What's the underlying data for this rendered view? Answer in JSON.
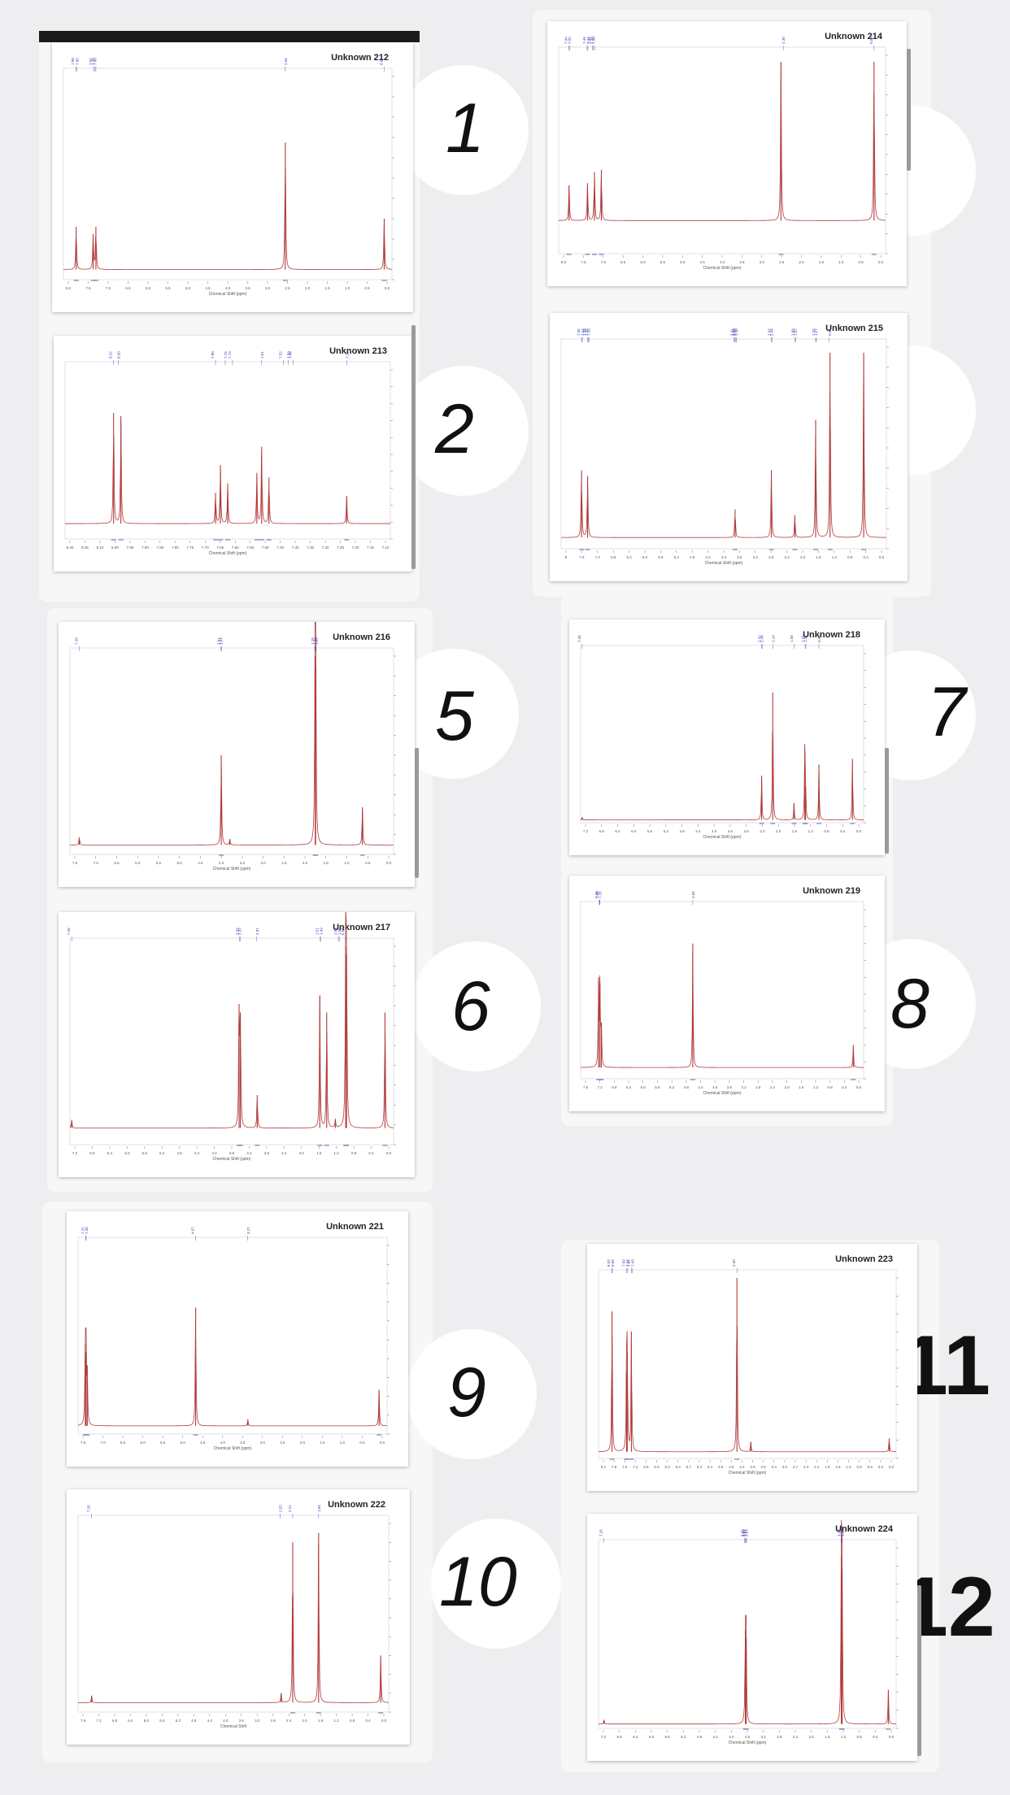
{
  "colors": {
    "spectrum": "#b13a3a",
    "peak_label": "#3a44b0",
    "axis": "#777777",
    "background": "#eeeef0"
  },
  "numbers": [
    "1",
    "2",
    "5",
    "6",
    "7",
    "8",
    "9",
    "10",
    "11",
    "12"
  ],
  "chart_data": [
    {
      "type": "line",
      "title": "Unknown 212",
      "xlabel": "Chemical Shift (ppm)",
      "xlim": [
        8.3,
        -0.2
      ],
      "ylim": [
        -0.1,
        1.9
      ],
      "x_ticks": [
        "8.0",
        "7.5",
        "7.0",
        "6.5",
        "6.0",
        "5.5",
        "5.0",
        "4.5",
        "4.0",
        "3.5",
        "3.0",
        "2.5",
        "2.0",
        "1.5",
        "1.0",
        "0.5",
        "0.0"
      ],
      "peak_labels": [
        "7.98",
        "7.95",
        "7.52",
        "7.49",
        "7.46",
        "2.56",
        "0.00"
      ],
      "series": [
        {
          "peaks": [
            {
              "x": 7.97,
              "y": 0.42
            },
            {
              "x": 7.53,
              "y": 0.35
            },
            {
              "x": 7.46,
              "y": 0.42
            },
            {
              "x": 2.56,
              "y": 1.25
            },
            {
              "x": 0.0,
              "y": 0.5
            }
          ]
        }
      ]
    },
    {
      "type": "line",
      "title": "Unknown 213",
      "xlabel": "Chemical Shift (ppm)",
      "xlim": [
        8.42,
        7.08
      ],
      "ylim": [
        -0.1,
        1.0
      ],
      "x_ticks": [
        "8.40",
        "8.25",
        "8.10",
        "8.00",
        "7.95",
        "7.90",
        "7.85",
        "7.80",
        "7.75",
        "7.70",
        "7.65",
        "7.60",
        "7.55",
        "7.50",
        "7.45",
        "7.40",
        "7.35",
        "7.30",
        "7.25",
        "7.20",
        "7.15",
        "7.10"
      ],
      "peak_labels": [
        "8.22",
        "8.20",
        "7.80",
        "7.76",
        "7.73",
        "7.61",
        "7.52",
        "7.50",
        "7.48",
        "7.26"
      ],
      "series": [
        {
          "peaks": [
            {
              "x": 8.22,
              "y": 0.72
            },
            {
              "x": 8.19,
              "y": 0.7
            },
            {
              "x": 7.8,
              "y": 0.2
            },
            {
              "x": 7.78,
              "y": 0.38
            },
            {
              "x": 7.75,
              "y": 0.26
            },
            {
              "x": 7.63,
              "y": 0.33
            },
            {
              "x": 7.61,
              "y": 0.5
            },
            {
              "x": 7.58,
              "y": 0.3
            },
            {
              "x": 7.26,
              "y": 0.18
            }
          ]
        }
      ]
    },
    {
      "type": "line",
      "title": "Unknown 214",
      "xlabel": "Chemical Shift (ppm)",
      "xlim": [
        8.2,
        -0.3
      ],
      "ylim": [
        -0.15,
        0.75
      ],
      "x_ticks": [
        "8.0",
        "7.5",
        "7.0",
        "6.5",
        "6.0",
        "5.5",
        "5.0",
        "4.5",
        "4.0",
        "3.5",
        "3.0",
        "2.5",
        "2.0",
        "1.5",
        "1.0",
        "0.5",
        "0.0"
      ],
      "peak_labels": [
        "7.94",
        "7.92",
        "7.46",
        "7.44",
        "7.32",
        "7.30",
        "7.26",
        "2.36",
        "0.00"
      ],
      "series": [
        {
          "peaks": [
            {
              "x": 7.93,
              "y": 0.16
            },
            {
              "x": 7.45,
              "y": 0.17
            },
            {
              "x": 7.27,
              "y": 0.22
            },
            {
              "x": 7.09,
              "y": 0.23
            },
            {
              "x": 2.42,
              "y": 0.72
            },
            {
              "x": 0.0,
              "y": 0.72
            }
          ]
        }
      ]
    },
    {
      "type": "line",
      "title": "Unknown 215",
      "xlabel": "Chemical Shift (ppm)",
      "xlim": [
        8.0,
        -0.6
      ],
      "ylim": [
        -0.02,
        0.34
      ],
      "x_ticks": [
        "8",
        "7.6",
        "7.2",
        "6.8",
        "6.4",
        "6.0",
        "5.6",
        "5.2",
        "4.8",
        "4.4",
        "4.0",
        "3.6",
        "3.2",
        "2.8",
        "2.4",
        "2.0",
        "1.6",
        "1.2",
        "0.8",
        "0.4",
        "0.0"
      ],
      "peak_labels": [
        "7.46",
        "7.44",
        "7.30",
        "7.28",
        "7.26",
        "3.43",
        "3.41",
        "3.38",
        "3.36",
        "2.44",
        "2.42",
        "1.82",
        "1.80",
        "1.27",
        "1.25",
        "0.91"
      ],
      "series": [
        {
          "peaks": [
            {
              "x": 7.46,
              "y": 0.12
            },
            {
              "x": 7.3,
              "y": 0.11
            },
            {
              "x": 3.4,
              "y": 0.05
            },
            {
              "x": 2.44,
              "y": 0.12
            },
            {
              "x": 1.82,
              "y": 0.04
            },
            {
              "x": 1.27,
              "y": 0.21
            },
            {
              "x": 0.89,
              "y": 0.33
            },
            {
              "x": 0.0,
              "y": 0.33
            }
          ]
        }
      ]
    },
    {
      "type": "line",
      "title": "Unknown 216",
      "xlabel": "Chemical Shift (ppm)",
      "xlim": [
        7.5,
        -0.8
      ],
      "ylim": [
        -0.01,
        0.2
      ],
      "x_ticks": [
        "7.5",
        "7.0",
        "6.5",
        "6.0",
        "5.5",
        "5.0",
        "4.5",
        "4.0",
        "3.5",
        "3.0",
        "2.5",
        "2.0",
        "1.5",
        "1.0",
        "0.5",
        "0.0"
      ],
      "peak_labels": [
        "7.26",
        "3.63",
        "3.61",
        "1.21",
        "1.20",
        "1.19"
      ],
      "series": [
        {
          "peaks": [
            {
              "x": 7.26,
              "y": 0.008
            },
            {
              "x": 3.62,
              "y": 0.095
            },
            {
              "x": 3.4,
              "y": 0.006
            },
            {
              "x": 1.21,
              "y": 0.2
            },
            {
              "x": 1.2,
              "y": 0.19
            },
            {
              "x": 0.0,
              "y": 0.04
            }
          ]
        }
      ]
    },
    {
      "type": "line",
      "title": "Unknown 217",
      "xlabel": "Chemical Shift (ppm)",
      "xlim": [
        7.3,
        -0.2
      ],
      "ylim": [
        -0.01,
        0.11
      ],
      "x_ticks": [
        "7.2",
        "6.8",
        "6.4",
        "6.0",
        "5.6",
        "5.2",
        "4.8",
        "4.4",
        "4.0",
        "3.6",
        "3.2",
        "2.8",
        "2.4",
        "2.0",
        "1.6",
        "1.2",
        "0.8",
        "0.4",
        "0.0"
      ],
      "peak_labels": [
        "7.26",
        "3.37",
        "3.35",
        "2.97",
        "1.51",
        "1.49",
        "1.08",
        "1.06",
        "0.91"
      ],
      "series": [
        {
          "peaks": [
            {
              "x": 7.26,
              "y": 0.005
            },
            {
              "x": 3.38,
              "y": 0.075
            },
            {
              "x": 3.35,
              "y": 0.07
            },
            {
              "x": 2.96,
              "y": 0.02
            },
            {
              "x": 1.51,
              "y": 0.08
            },
            {
              "x": 1.35,
              "y": 0.07
            },
            {
              "x": 1.15,
              "y": 0.005
            },
            {
              "x": 0.91,
              "y": 0.11
            },
            {
              "x": 0.89,
              "y": 0.105
            },
            {
              "x": 0.0,
              "y": 0.07
            }
          ]
        }
      ]
    },
    {
      "type": "line",
      "title": "Unknown 218",
      "xlabel": "Chemical Shift (ppm)",
      "xlim": [
        7.3,
        -0.3
      ],
      "ylim": [
        -0.01,
        0.6
      ],
      "x_ticks": [
        "7.2",
        "6.8",
        "6.4",
        "6.0",
        "5.6",
        "5.2",
        "4.8",
        "4.4",
        "4.0",
        "3.6",
        "2.8",
        "2.4",
        "2.0",
        "1.6",
        "1.2",
        "0.8",
        "0.4",
        "0.0"
      ],
      "peak_labels": [
        "7.26",
        "2.44",
        "2.42",
        "2.14",
        "1.56",
        "1.27",
        "1.25",
        "0.90"
      ],
      "series": [
        {
          "peaks": [
            {
              "x": 7.26,
              "y": 0.01
            },
            {
              "x": 2.44,
              "y": 0.16
            },
            {
              "x": 2.14,
              "y": 0.46
            },
            {
              "x": 1.57,
              "y": 0.06
            },
            {
              "x": 1.28,
              "y": 0.25
            },
            {
              "x": 1.26,
              "y": 0.12
            },
            {
              "x": 0.9,
              "y": 0.2
            },
            {
              "x": 0.0,
              "y": 0.22
            }
          ]
        }
      ]
    },
    {
      "type": "line",
      "title": "Unknown 219",
      "xlabel": "Chemical Shift (ppm)",
      "xlim": [
        7.9,
        -0.3
      ],
      "ylim": [
        -0.1,
        1.4
      ],
      "x_ticks": [
        "7.6",
        "7.2",
        "6.8",
        "6.4",
        "6.0",
        "5.6",
        "5.2",
        "4.8",
        "4.4",
        "4.0",
        "3.6",
        "3.2",
        "2.8",
        "2.4",
        "2.0",
        "1.6",
        "1.2",
        "0.8",
        "0.4",
        "0.0"
      ],
      "peak_labels": [
        "7.36",
        "7.35",
        "7.34",
        "4.65"
      ],
      "series": [
        {
          "peaks": [
            {
              "x": 7.38,
              "y": 0.8
            },
            {
              "x": 7.34,
              "y": 0.75
            },
            {
              "x": 7.3,
              "y": 0.4
            },
            {
              "x": 4.65,
              "y": 1.1
            },
            {
              "x": 0.0,
              "y": 0.2
            }
          ]
        }
      ]
    },
    {
      "type": "line",
      "title": "Unknown 221",
      "xlabel": "Chemical Shift (ppm)",
      "xlim": [
        7.5,
        -0.2
      ],
      "ylim": [
        -0.05,
        1.1
      ],
      "x_ticks": [
        "7.5",
        "7.0",
        "6.5",
        "6.0",
        "5.5",
        "5.0",
        "4.5",
        "4.0",
        "3.5",
        "3.0",
        "2.5",
        "2.0",
        "1.5",
        "1.0",
        "0.5",
        "0.0"
      ],
      "peak_labels": [
        "7.31",
        "7.30",
        "4.57",
        "3.27"
      ],
      "series": [
        {
          "peaks": [
            {
              "x": 7.32,
              "y": 0.5
            },
            {
              "x": 7.3,
              "y": 0.45
            },
            {
              "x": 7.27,
              "y": 0.3
            },
            {
              "x": 4.57,
              "y": 0.72
            },
            {
              "x": 3.27,
              "y": 0.04
            },
            {
              "x": 0.0,
              "y": 0.22
            }
          ]
        }
      ]
    },
    {
      "type": "line",
      "title": "Unknown 222",
      "xlabel": "Chemical Shift",
      "xlim": [
        7.6,
        -0.2
      ],
      "ylim": [
        -0.02,
        0.38
      ],
      "x_ticks": [
        "7.6",
        "7.2",
        "6.8",
        "6.4",
        "6.0",
        "5.6",
        "5.2",
        "4.8",
        "4.4",
        "4.0",
        "3.6",
        "3.2",
        "2.8",
        "2.4",
        "2.0",
        "1.6",
        "1.2",
        "0.8",
        "0.4",
        "0.0"
      ],
      "peak_labels": [
        "7.26",
        "2.53",
        "2.21",
        "1.56"
      ],
      "series": [
        {
          "peaks": [
            {
              "x": 7.26,
              "y": 0.015
            },
            {
              "x": 2.5,
              "y": 0.02
            },
            {
              "x": 2.21,
              "y": 0.34
            },
            {
              "x": 1.56,
              "y": 0.36
            },
            {
              "x": 0.0,
              "y": 0.1
            }
          ]
        }
      ]
    },
    {
      "type": "line",
      "title": "Unknown 223",
      "xlabel": "Chemical Shift (ppm)",
      "xlim": [
        8.4,
        -0.2
      ],
      "ylim": [
        -0.01,
        0.26
      ],
      "x_ticks": [
        "8.1",
        "7.8",
        "7.5",
        "7.2",
        "6.9",
        "6.6",
        "6.3",
        "6.0",
        "5.7",
        "5.4",
        "5.1",
        "4.8",
        "4.5",
        "4.2",
        "3.9",
        "3.6",
        "3.3",
        "3.0",
        "2.7",
        "2.4",
        "2.1",
        "1.8",
        "1.5",
        "1.2",
        "0.9",
        "0.6",
        "0.3",
        "0.0"
      ],
      "peak_labels": [
        "8.02",
        "8.00",
        "7.59",
        "7.57",
        "7.45",
        "7.43",
        "4.40"
      ],
      "series": [
        {
          "peaks": [
            {
              "x": 8.01,
              "y": 0.21
            },
            {
              "x": 7.59,
              "y": 0.12
            },
            {
              "x": 7.57,
              "y": 0.15
            },
            {
              "x": 7.45,
              "y": 0.18
            },
            {
              "x": 4.4,
              "y": 0.26
            },
            {
              "x": 4.0,
              "y": 0.015
            },
            {
              "x": 0.0,
              "y": 0.02
            }
          ]
        }
      ]
    },
    {
      "type": "line",
      "title": "Unknown 224",
      "xlabel": "Chemical Shift (ppm)",
      "xlim": [
        7.4,
        -0.2
      ],
      "ylim": [
        -0.01,
        0.41
      ],
      "x_ticks": [
        "7.2",
        "6.8",
        "6.4",
        "6.0",
        "5.6",
        "5.2",
        "4.8",
        "4.4",
        "4.0",
        "3.6",
        "3.2",
        "2.8",
        "2.4",
        "2.0",
        "1.6",
        "1.2",
        "0.8",
        "0.4",
        "0.0"
      ],
      "peak_labels": [
        "7.26",
        "3.67",
        "3.65",
        "3.63",
        "3.62",
        "1.20",
        "1.19",
        "1.18"
      ],
      "series": [
        {
          "peaks": [
            {
              "x": 7.26,
              "y": 0.01
            },
            {
              "x": 3.65,
              "y": 0.22
            },
            {
              "x": 3.63,
              "y": 0.2
            },
            {
              "x": 1.2,
              "y": 0.39
            },
            {
              "x": 1.18,
              "y": 0.36
            },
            {
              "x": 0.0,
              "y": 0.08
            }
          ]
        }
      ]
    }
  ]
}
